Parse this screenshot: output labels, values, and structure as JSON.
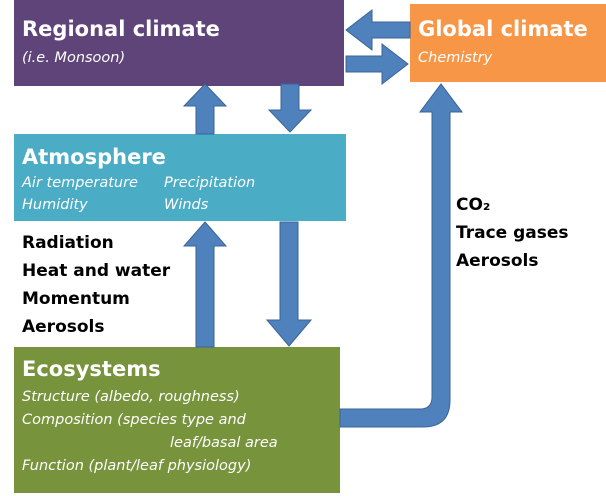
{
  "regional": {
    "title": "Regional climate",
    "subtitle": "(i.e. Monsoon)"
  },
  "global": {
    "title": "Global climate",
    "subtitle": "Chemistry"
  },
  "atmosphere": {
    "title": "Atmosphere",
    "items": [
      "Air temperature",
      "Precipitation",
      "Humidity",
      "Winds"
    ]
  },
  "fluxes": [
    "Radiation",
    "Heat and water",
    "Momentum",
    "Aerosols"
  ],
  "emissions": [
    "CO₂",
    "Trace gases",
    "Aerosols"
  ],
  "ecosystems": {
    "title": "Ecosystems",
    "lines": [
      "Structure (albedo, roughness)",
      "Composition (species type and",
      "leaf/basal area",
      "Function (plant/leaf physiology)"
    ]
  }
}
